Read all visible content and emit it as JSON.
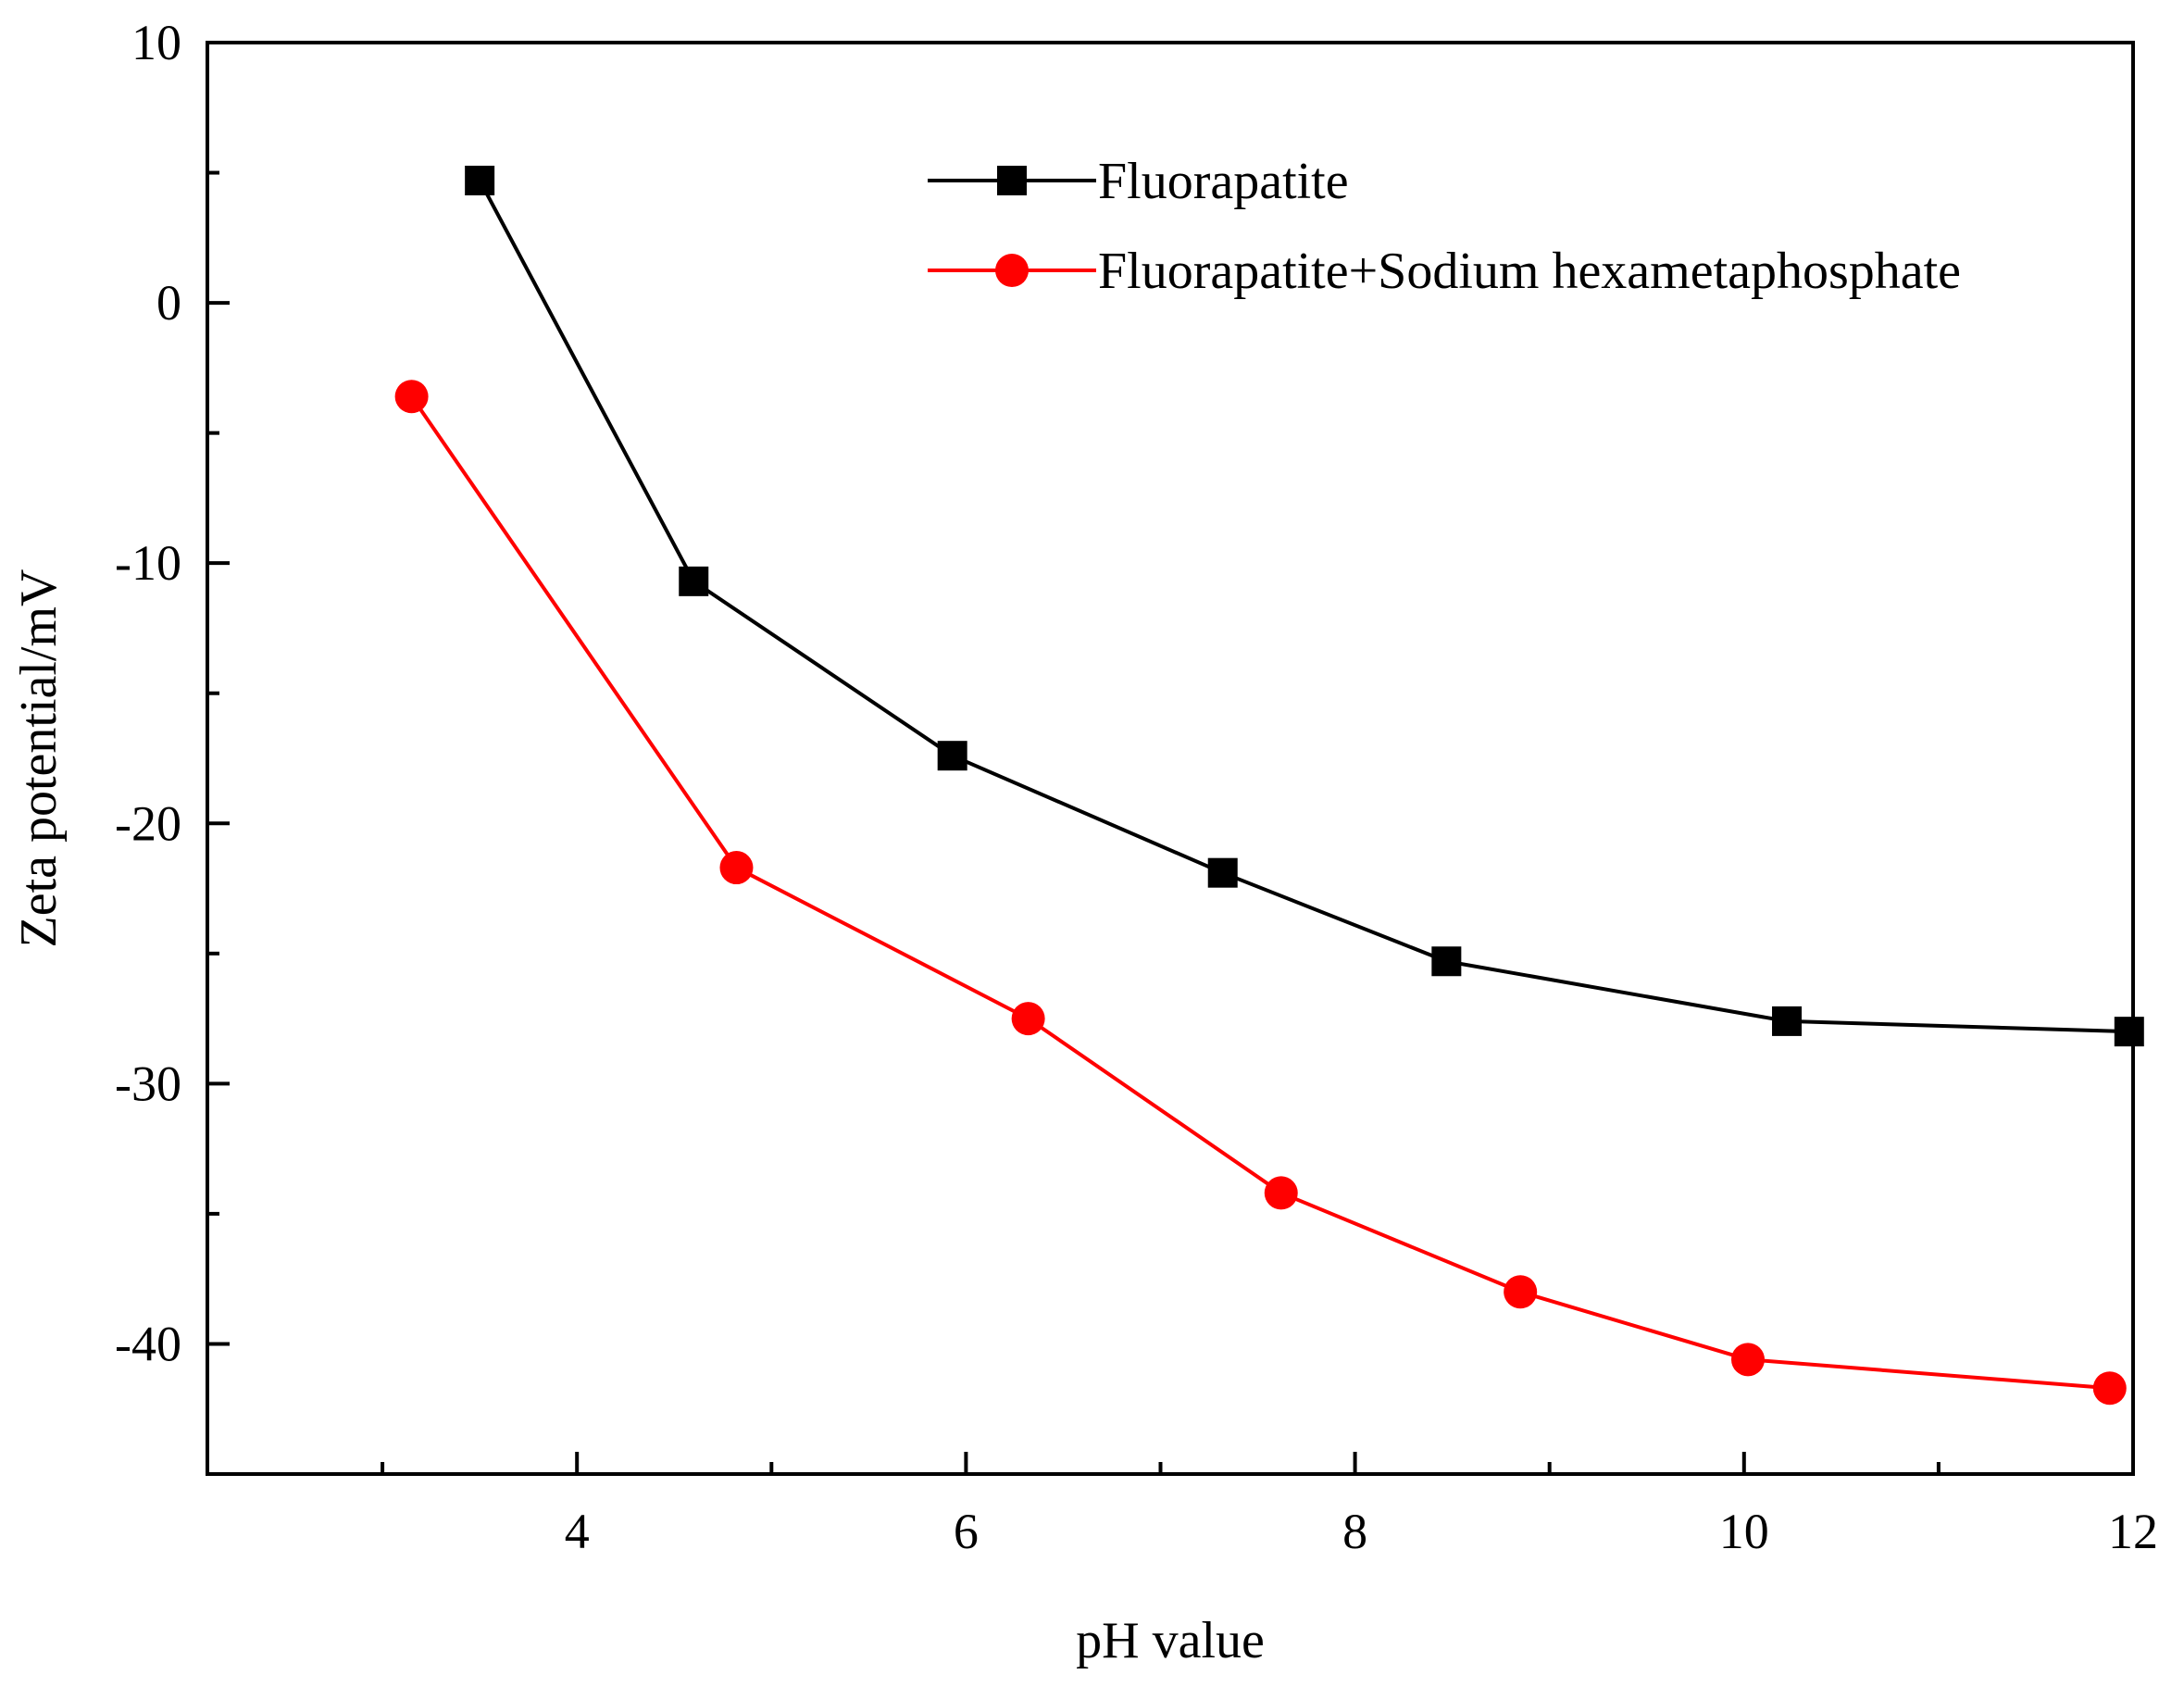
{
  "chart_data": {
    "type": "line",
    "title": "",
    "xlabel": "pH value",
    "ylabel": "Zeta potential/mV",
    "xlim": [
      2.1,
      12
    ],
    "ylim": [
      -45,
      10
    ],
    "x_ticks": [
      4,
      6,
      8,
      10,
      12
    ],
    "x_minor_ticks": [
      3,
      5,
      7,
      9,
      11
    ],
    "y_ticks": [
      10,
      0,
      -10,
      -20,
      -30,
      -40
    ],
    "y_minor_ticks": [
      5,
      -5,
      -15,
      -25,
      -35
    ],
    "grid": false,
    "legend_position": "top-right",
    "series": [
      {
        "name": "Fluorapatite",
        "color": "#000000",
        "marker": "square",
        "x": [
          3.5,
          4.6,
          5.93,
          7.32,
          8.47,
          10.22,
          11.98
        ],
        "y": [
          4.7,
          -10.7,
          -17.4,
          -21.9,
          -25.3,
          -27.6,
          -28.0
        ]
      },
      {
        "name": "Fluorapatite+Sodium hexametaphosphate",
        "color": "#ff0000",
        "marker": "circle",
        "x": [
          3.15,
          4.82,
          6.32,
          7.62,
          8.85,
          10.02,
          11.88
        ],
        "y": [
          -3.6,
          -21.7,
          -27.5,
          -34.2,
          -38.0,
          -40.6,
          -41.7
        ]
      }
    ]
  }
}
